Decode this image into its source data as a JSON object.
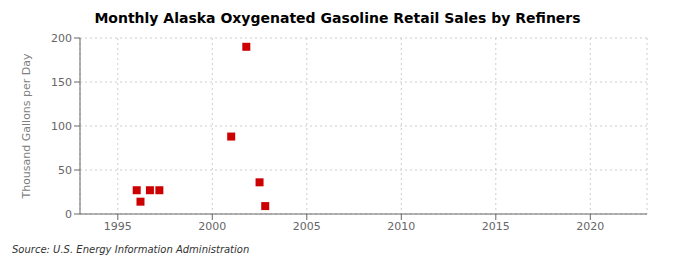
{
  "chart_data": {
    "type": "scatter",
    "title": "Monthly Alaska Oxygenated Gasoline Retail Sales by Refiners",
    "ylabel": "Thousand Gallons per Day",
    "annotations": [
      "Source: U.S. Energy Information Administration"
    ],
    "x": [
      1996.0,
      1996.2,
      1996.7,
      1997.2,
      2001.0,
      2001.8,
      2002.5,
      2002.8
    ],
    "values": [
      27,
      14,
      27,
      27,
      88,
      190,
      36,
      9
    ],
    "color": "#cc0000",
    "marker": "square",
    "xlim": [
      1993,
      2023
    ],
    "ylim": [
      0,
      200
    ],
    "xticks": [
      1995,
      2000,
      2005,
      2010,
      2015,
      2020
    ],
    "yticks": [
      0,
      50,
      100,
      150,
      200
    ],
    "grid": true
  }
}
